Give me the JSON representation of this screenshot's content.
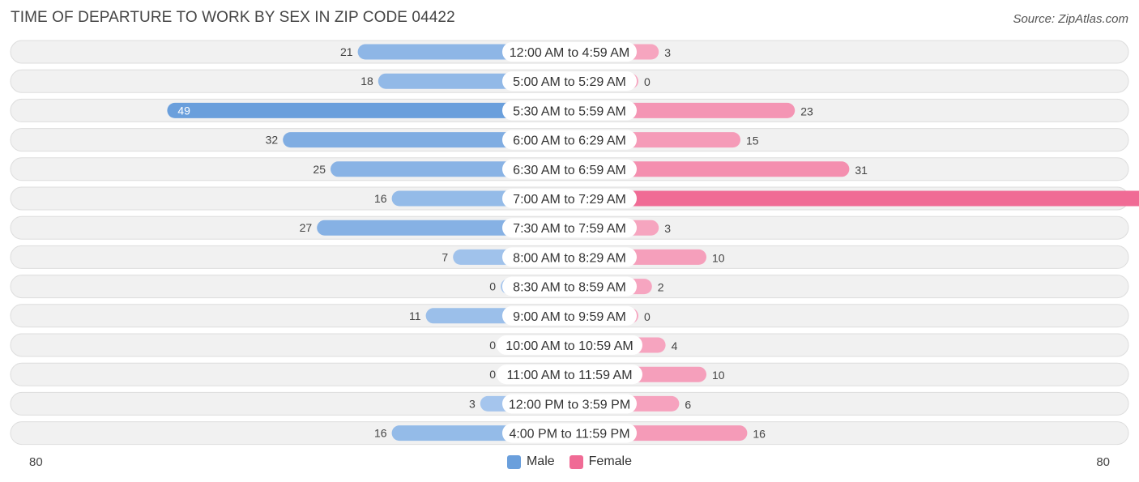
{
  "title": "TIME OF DEPARTURE TO WORK BY SEX IN ZIP CODE 04422",
  "source": "Source: ZipAtlas.com",
  "colors": {
    "male": "#6a9fdc",
    "male_light": "#a9c8ee",
    "female": "#f06b95",
    "female_light": "#f6a7c1",
    "row_bg": "#f1f1f1",
    "row_border": "#dddddd"
  },
  "legend": {
    "male_label": "Male",
    "female_label": "Female"
  },
  "axis": {
    "left_label": "80",
    "right_label": "80"
  },
  "chart_data": {
    "type": "bar",
    "orientation": "horizontal-diverging",
    "title": "TIME OF DEPARTURE TO WORK BY SEX IN ZIP CODE 04422",
    "xlim": [
      -80,
      80
    ],
    "categories": [
      "12:00 AM to 4:59 AM",
      "5:00 AM to 5:29 AM",
      "5:30 AM to 5:59 AM",
      "6:00 AM to 6:29 AM",
      "6:30 AM to 6:59 AM",
      "7:00 AM to 7:29 AM",
      "7:30 AM to 7:59 AM",
      "8:00 AM to 8:29 AM",
      "8:30 AM to 8:59 AM",
      "9:00 AM to 9:59 AM",
      "10:00 AM to 10:59 AM",
      "11:00 AM to 11:59 AM",
      "12:00 PM to 3:59 PM",
      "4:00 PM to 11:59 PM"
    ],
    "series": [
      {
        "name": "Male",
        "values": [
          21,
          18,
          49,
          32,
          25,
          16,
          27,
          7,
          0,
          11,
          0,
          0,
          3,
          16
        ]
      },
      {
        "name": "Female",
        "values": [
          3,
          0,
          23,
          15,
          31,
          77,
          3,
          10,
          2,
          0,
          4,
          10,
          6,
          16
        ]
      }
    ],
    "legend_position": "bottom-center"
  }
}
